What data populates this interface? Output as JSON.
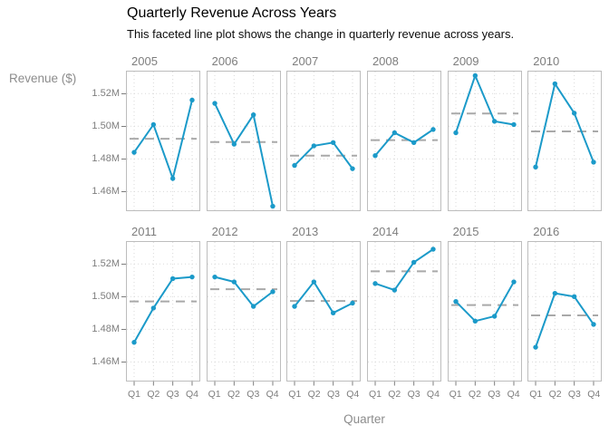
{
  "chart_data": {
    "type": "line",
    "title": "Quarterly Revenue Across Years",
    "subtitle": "This faceted line plot shows the change in quarterly revenue across years.",
    "xlabel": "Quarter",
    "ylabel": "Revenue ($)",
    "categories": [
      "Q1",
      "Q2",
      "Q3",
      "Q4"
    ],
    "faceted_by": "year",
    "facet_layout": {
      "rows": 2,
      "cols": 6
    },
    "ylim": [
      1.448,
      1.534
    ],
    "y_ticks": [
      {
        "value": 1.52,
        "label": "1.52M"
      },
      {
        "value": 1.5,
        "label": "1.50M"
      },
      {
        "value": 1.48,
        "label": "1.48M"
      },
      {
        "value": 1.46,
        "label": "1.46M"
      }
    ],
    "grid": "dotted",
    "legend": "none",
    "reference_line": "dashed horizontal line at each facet's yearly mean",
    "units_suffix": "M",
    "colors": {
      "line": "#1b9ac9",
      "point": "#1b9ac9",
      "mean_dash": "#a9a9a9",
      "panel_border": "#bdbdbd",
      "gridline": "#d9d9d9",
      "facet_text": "#7d7d7d",
      "axis_title_text": "#8c8c8c",
      "title_text": "#000000"
    },
    "facets": [
      {
        "year": "2005",
        "values": [
          1.484,
          1.501,
          1.468,
          1.516
        ],
        "mean": 1.4923
      },
      {
        "year": "2006",
        "values": [
          1.514,
          1.489,
          1.507,
          1.451
        ],
        "mean": 1.4903
      },
      {
        "year": "2007",
        "values": [
          1.476,
          1.488,
          1.49,
          1.474
        ],
        "mean": 1.482
      },
      {
        "year": "2008",
        "values": [
          1.482,
          1.496,
          1.49,
          1.498
        ],
        "mean": 1.4915
      },
      {
        "year": "2009",
        "values": [
          1.496,
          1.531,
          1.503,
          1.501
        ],
        "mean": 1.5078
      },
      {
        "year": "2010",
        "values": [
          1.475,
          1.526,
          1.508,
          1.478
        ],
        "mean": 1.4968
      },
      {
        "year": "2011",
        "values": [
          1.472,
          1.493,
          1.511,
          1.512
        ],
        "mean": 1.497
      },
      {
        "year": "2012",
        "values": [
          1.512,
          1.509,
          1.494,
          1.503
        ],
        "mean": 1.5045
      },
      {
        "year": "2013",
        "values": [
          1.494,
          1.509,
          1.49,
          1.496
        ],
        "mean": 1.4973
      },
      {
        "year": "2014",
        "values": [
          1.508,
          1.504,
          1.521,
          1.529
        ],
        "mean": 1.5155
      },
      {
        "year": "2015",
        "values": [
          1.497,
          1.485,
          1.488,
          1.509
        ],
        "mean": 1.4948
      },
      {
        "year": "2016",
        "values": [
          1.469,
          1.502,
          1.5,
          1.483
        ],
        "mean": 1.4885
      }
    ]
  }
}
